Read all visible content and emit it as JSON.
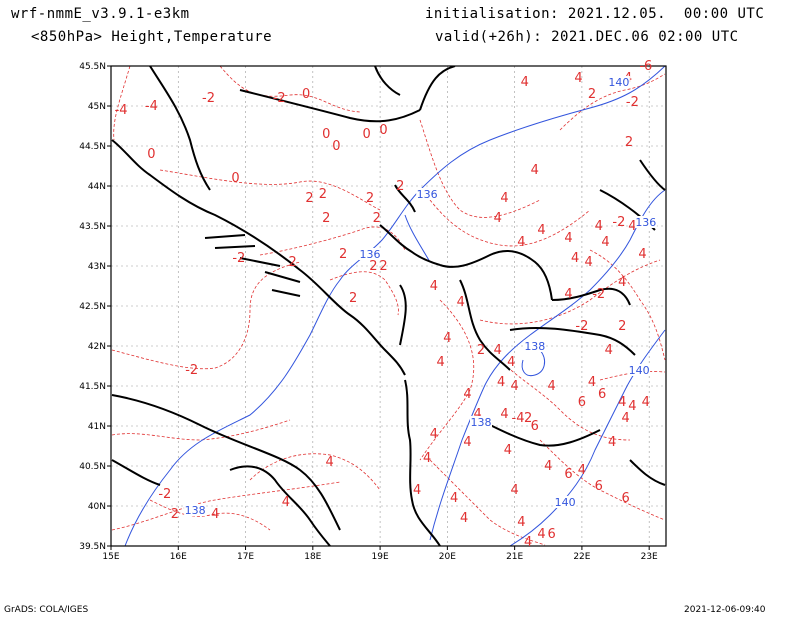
{
  "header": {
    "model": "wrf-nmmE_v3.9.1-e3km",
    "field": "<850hPa> Height,Temperature",
    "init": "initialisation: 2021.12.05.  00:00 UTC",
    "valid": "valid(+26h): 2021.DEC.06 02:00 UTC"
  },
  "axes": {
    "lat_labels": [
      "45.5N",
      "45N",
      "44.5N",
      "44N",
      "43.5N",
      "43N",
      "42.5N",
      "42N",
      "41.5N",
      "41N",
      "40.5N",
      "40N",
      "39.5N"
    ],
    "lon_labels": [
      "15E",
      "16E",
      "17E",
      "18E",
      "19E",
      "20E",
      "21E",
      "22E",
      "23E"
    ]
  },
  "temperature_labels": [
    {
      "text": "-2",
      "lon": 16.45,
      "lat": 45.05
    },
    {
      "text": "-4",
      "lon": 15.15,
      "lat": 44.9
    },
    {
      "text": "-4",
      "lon": 15.6,
      "lat": 44.95
    },
    {
      "text": "-2",
      "lon": 17.5,
      "lat": 45.05
    },
    {
      "text": "0",
      "lon": 17.9,
      "lat": 45.1
    },
    {
      "text": "0",
      "lon": 18.2,
      "lat": 44.6
    },
    {
      "text": "0",
      "lon": 18.35,
      "lat": 44.45
    },
    {
      "text": "0",
      "lon": 18.8,
      "lat": 44.6
    },
    {
      "text": "0",
      "lon": 19.05,
      "lat": 44.65
    },
    {
      "text": "0",
      "lon": 15.6,
      "lat": 44.35
    },
    {
      "text": "0",
      "lon": 16.85,
      "lat": 44.05
    },
    {
      "text": "2",
      "lon": 17.95,
      "lat": 43.8
    },
    {
      "text": "2",
      "lon": 18.15,
      "lat": 43.85
    },
    {
      "text": "2",
      "lon": 18.85,
      "lat": 43.8
    },
    {
      "text": "2",
      "lon": 19.3,
      "lat": 43.95
    },
    {
      "text": "2",
      "lon": 18.2,
      "lat": 43.55
    },
    {
      "text": "2",
      "lon": 18.95,
      "lat": 43.55
    },
    {
      "text": "-2",
      "lon": 16.9,
      "lat": 43.05
    },
    {
      "text": "2",
      "lon": 17.7,
      "lat": 43.0
    },
    {
      "text": "2",
      "lon": 18.45,
      "lat": 43.1
    },
    {
      "text": "2",
      "lon": 18.9,
      "lat": 42.95
    },
    {
      "text": "2",
      "lon": 19.05,
      "lat": 42.95
    },
    {
      "text": "2",
      "lon": 18.6,
      "lat": 42.55
    },
    {
      "text": "4",
      "lon": 19.8,
      "lat": 42.7
    },
    {
      "text": "4",
      "lon": 20.2,
      "lat": 42.5
    },
    {
      "text": "4",
      "lon": 20.0,
      "lat": 42.05
    },
    {
      "text": "4",
      "lon": 19.9,
      "lat": 41.75
    },
    {
      "text": "-2",
      "lon": 16.2,
      "lat": 41.65
    },
    {
      "text": "4",
      "lon": 20.3,
      "lat": 41.35
    },
    {
      "text": "4",
      "lon": 20.45,
      "lat": 41.1
    },
    {
      "text": "4",
      "lon": 19.8,
      "lat": 40.85
    },
    {
      "text": "4",
      "lon": 18.25,
      "lat": 40.5
    },
    {
      "text": "4",
      "lon": 19.7,
      "lat": 40.55
    },
    {
      "text": "4",
      "lon": 19.55,
      "lat": 40.15
    },
    {
      "text": "4",
      "lon": 20.1,
      "lat": 40.05
    },
    {
      "text": "-2",
      "lon": 15.8,
      "lat": 40.1
    },
    {
      "text": "2",
      "lon": 15.95,
      "lat": 39.85
    },
    {
      "text": "4",
      "lon": 16.55,
      "lat": 39.85
    },
    {
      "text": "4",
      "lon": 17.6,
      "lat": 40.0
    },
    {
      "text": "4",
      "lon": 20.25,
      "lat": 39.8
    },
    {
      "text": "4",
      "lon": 20.8,
      "lat": 41.5
    },
    {
      "text": "2",
      "lon": 20.5,
      "lat": 41.9
    },
    {
      "text": "4",
      "lon": 20.75,
      "lat": 41.9
    },
    {
      "text": "4",
      "lon": 21.0,
      "lat": 41.45
    },
    {
      "text": "4",
      "lon": 20.85,
      "lat": 41.1
    },
    {
      "text": "-4",
      "lon": 21.05,
      "lat": 41.05
    },
    {
      "text": "2",
      "lon": 21.2,
      "lat": 41.05
    },
    {
      "text": "6",
      "lon": 21.3,
      "lat": 40.95
    },
    {
      "text": "4",
      "lon": 20.3,
      "lat": 40.75
    },
    {
      "text": "4",
      "lon": 20.9,
      "lat": 40.65
    },
    {
      "text": "4",
      "lon": 21.5,
      "lat": 40.45
    },
    {
      "text": "6",
      "lon": 21.8,
      "lat": 40.35
    },
    {
      "text": "4",
      "lon": 22.0,
      "lat": 40.4
    },
    {
      "text": "6",
      "lon": 22.25,
      "lat": 40.2
    },
    {
      "text": "6",
      "lon": 22.65,
      "lat": 40.05
    },
    {
      "text": "4",
      "lon": 21.0,
      "lat": 40.15
    },
    {
      "text": "4",
      "lon": 21.1,
      "lat": 39.75
    },
    {
      "text": "4",
      "lon": 21.2,
      "lat": 39.5
    },
    {
      "text": "4",
      "lon": 21.4,
      "lat": 39.6
    },
    {
      "text": "6",
      "lon": 21.55,
      "lat": 39.6
    },
    {
      "text": "4",
      "lon": 20.85,
      "lat": 43.8
    },
    {
      "text": "4",
      "lon": 20.75,
      "lat": 43.55
    },
    {
      "text": "4",
      "lon": 21.4,
      "lat": 43.4
    },
    {
      "text": "4",
      "lon": 21.1,
      "lat": 43.25
    },
    {
      "text": "4",
      "lon": 21.8,
      "lat": 43.3
    },
    {
      "text": "4",
      "lon": 21.9,
      "lat": 43.05
    },
    {
      "text": "4",
      "lon": 22.25,
      "lat": 43.45
    },
    {
      "text": "-2",
      "lon": 22.55,
      "lat": 43.5
    },
    {
      "text": "4",
      "lon": 22.75,
      "lat": 43.45
    },
    {
      "text": "4",
      "lon": 22.35,
      "lat": 43.25
    },
    {
      "text": "4",
      "lon": 22.9,
      "lat": 43.1
    },
    {
      "text": "4",
      "lon": 22.1,
      "lat": 43.0
    },
    {
      "text": "4",
      "lon": 21.8,
      "lat": 42.6
    },
    {
      "text": "-2",
      "lon": 22.25,
      "lat": 42.6
    },
    {
      "text": "-2",
      "lon": 22.0,
      "lat": 42.2
    },
    {
      "text": "4",
      "lon": 22.6,
      "lat": 42.75
    },
    {
      "text": "2",
      "lon": 22.6,
      "lat": 42.2
    },
    {
      "text": "4",
      "lon": 22.4,
      "lat": 41.9
    },
    {
      "text": "4",
      "lon": 22.15,
      "lat": 41.5
    },
    {
      "text": "6",
      "lon": 22.0,
      "lat": 41.25
    },
    {
      "text": "6",
      "lon": 22.3,
      "lat": 41.35
    },
    {
      "text": "4",
      "lon": 22.6,
      "lat": 41.25
    },
    {
      "text": "4",
      "lon": 22.75,
      "lat": 41.2
    },
    {
      "text": "4",
      "lon": 22.95,
      "lat": 41.25
    },
    {
      "text": "4",
      "lon": 22.65,
      "lat": 41.05
    },
    {
      "text": "4",
      "lon": 22.45,
      "lat": 40.75
    },
    {
      "text": "4",
      "lon": 21.55,
      "lat": 41.45
    },
    {
      "text": "4",
      "lon": 20.95,
      "lat": 41.75
    },
    {
      "text": "4",
      "lon": 21.3,
      "lat": 44.15
    },
    {
      "text": "4",
      "lon": 21.95,
      "lat": 45.3
    },
    {
      "text": "4",
      "lon": 21.15,
      "lat": 45.25
    },
    {
      "text": "2",
      "lon": 22.15,
      "lat": 45.1
    },
    {
      "text": "-4",
      "lon": 22.65,
      "lat": 45.3
    },
    {
      "text": "-6",
      "lon": 22.95,
      "lat": 45.45
    },
    {
      "text": "-2",
      "lon": 22.75,
      "lat": 45.0
    },
    {
      "text": "2",
      "lon": 22.7,
      "lat": 44.5
    }
  ],
  "height_labels": [
    {
      "text": "136",
      "lon": 19.7,
      "lat": 43.85
    },
    {
      "text": "136",
      "lon": 18.85,
      "lat": 43.1
    },
    {
      "text": "136",
      "lon": 22.95,
      "lat": 43.5
    },
    {
      "text": "138",
      "lon": 21.3,
      "lat": 41.95
    },
    {
      "text": "138",
      "lon": 20.5,
      "lat": 41.0
    },
    {
      "text": "138",
      "lon": 16.25,
      "lat": 39.9
    },
    {
      "text": "140",
      "lon": 22.85,
      "lat": 41.65
    },
    {
      "text": "140",
      "lon": 21.75,
      "lat": 40.0
    },
    {
      "text": "140",
      "lon": 22.55,
      "lat": 45.25
    }
  ],
  "footer": {
    "left": "GrADS: COLA/IGES",
    "right": "2021-12-06-09:40"
  },
  "colors": {
    "temperature": "#e03030",
    "height": "#3355dd",
    "coast": "#000000",
    "grid": "#9a9a9a"
  }
}
